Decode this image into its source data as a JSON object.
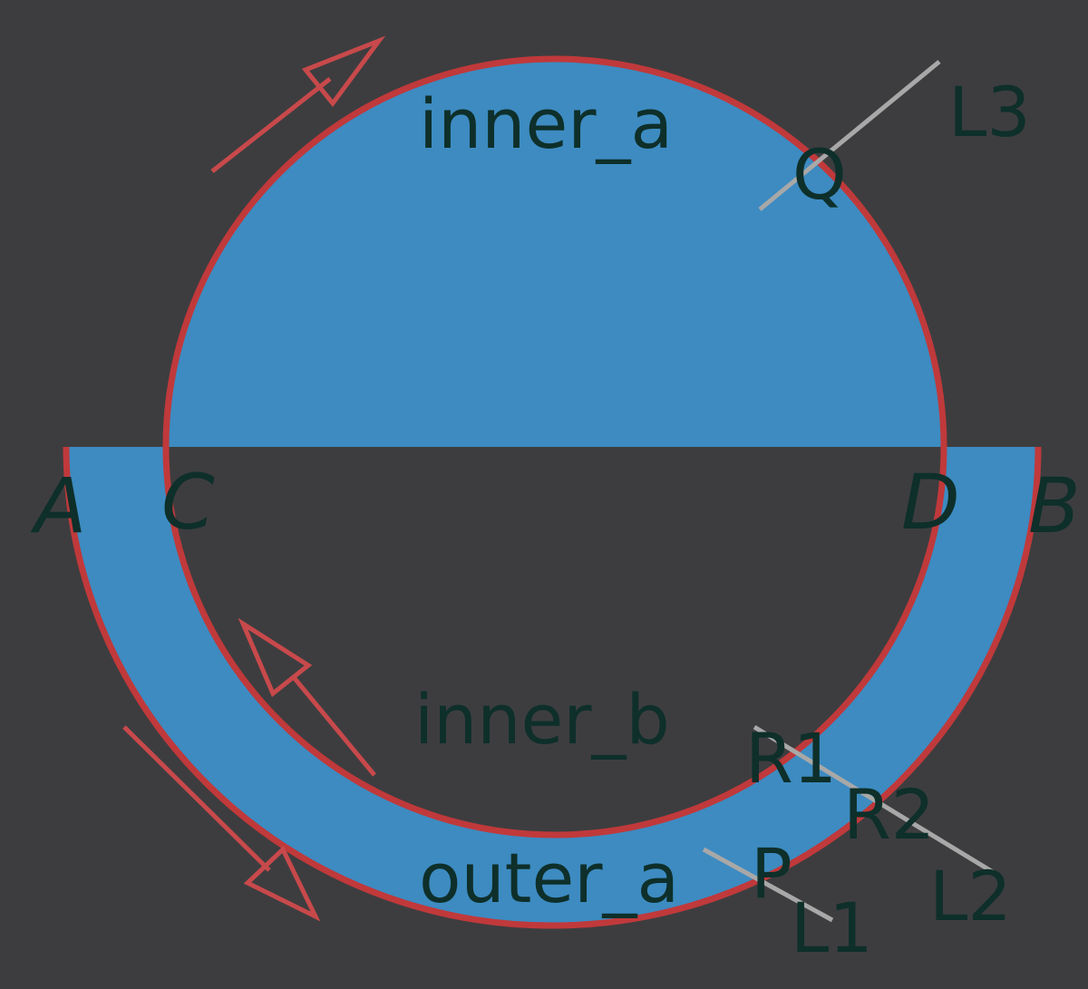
{
  "colors": {
    "background": "#3d3d3f",
    "fill": "#3d8bc1",
    "outline": "#c0393b",
    "guide_line": "#a8a8a8",
    "label": "#0e2f2a"
  },
  "regions": {
    "inner_a": "inner_a",
    "inner_b": "inner_b",
    "outer_a": "outer_a"
  },
  "points": {
    "A": "A",
    "B": "B",
    "C": "C",
    "D": "D",
    "P": "P",
    "Q": "Q",
    "R1": "R1",
    "R2": "R2"
  },
  "lines": {
    "L1": "L1",
    "L2": "L2",
    "L3": "L3"
  },
  "arrows": [
    {
      "name": "arrow-inner-a",
      "direction": "clockwise"
    },
    {
      "name": "arrow-inner-b",
      "direction": "clockwise"
    },
    {
      "name": "arrow-outer-a",
      "direction": "counterclockwise"
    }
  ]
}
